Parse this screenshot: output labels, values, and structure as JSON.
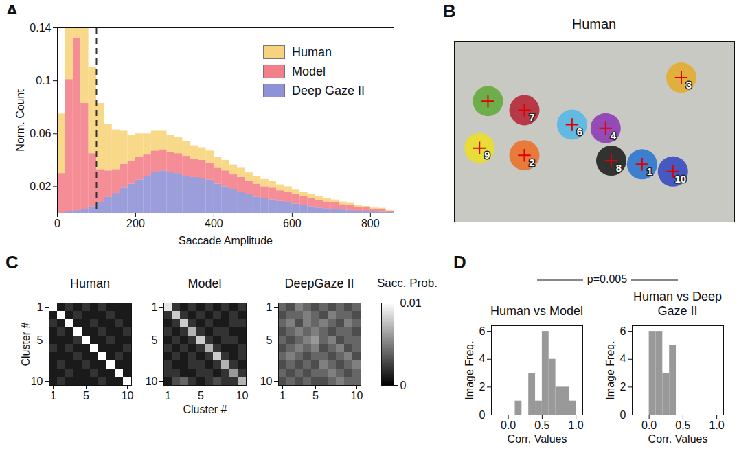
{
  "chart_data": [
    {
      "panel_label": "A",
      "type": "histogram",
      "x_label": "Saccade Amplitude",
      "y_label": "Norm. Count",
      "bins": [
        0,
        20,
        40,
        60,
        80,
        100,
        120,
        140,
        160,
        180,
        200,
        220,
        240,
        260,
        280,
        300,
        320,
        340,
        360,
        380,
        400,
        420,
        440,
        460,
        480,
        500,
        520,
        540,
        560,
        580,
        600,
        620,
        640,
        660,
        680,
        700,
        720,
        740,
        760,
        780,
        800,
        820,
        840,
        860
      ],
      "series": [
        {
          "name": "Human",
          "color": "#f5c95c",
          "values": [
            0.045,
            0.09,
            0.11,
            0.09,
            0.065,
            0.05,
            0.035,
            0.03,
            0.025,
            0.02,
            0.018,
            0.016,
            0.015,
            0.014,
            0.013,
            0.012,
            0.011,
            0.01,
            0.0095,
            0.009,
            0.0085,
            0.008,
            0.0075,
            0.007,
            0.0065,
            0.006,
            0.0055,
            0.005,
            0.0045,
            0.004,
            0.0035,
            0.003,
            0.003,
            0.0025,
            0.0025,
            0.002,
            0.002,
            0.0015,
            0.0015,
            0.001,
            0.001,
            0.001,
            0.0005
          ]
        },
        {
          "name": "Model",
          "color": "#f0616e",
          "values": [
            0.03,
            0.1,
            0.13,
            0.08,
            0.04,
            0.025,
            0.02,
            0.018,
            0.018,
            0.017,
            0.017,
            0.016,
            0.016,
            0.016,
            0.015,
            0.015,
            0.015,
            0.014,
            0.014,
            0.013,
            0.012,
            0.012,
            0.011,
            0.011,
            0.01,
            0.01,
            0.009,
            0.009,
            0.008,
            0.008,
            0.007,
            0.007,
            0.006,
            0.006,
            0.005,
            0.005,
            0.004,
            0.004,
            0.003,
            0.003,
            0.002,
            0.002,
            0.001
          ]
        },
        {
          "name": "Deep Gaze II",
          "color": "#7478cc",
          "values": [
            0,
            0.001,
            0.002,
            0.003,
            0.005,
            0.008,
            0.012,
            0.015,
            0.019,
            0.022,
            0.025,
            0.028,
            0.031,
            0.032,
            0.031,
            0.03,
            0.028,
            0.027,
            0.026,
            0.025,
            0.022,
            0.02,
            0.018,
            0.016,
            0.014,
            0.012,
            0.011,
            0.01,
            0.009,
            0.008,
            0.007,
            0.006,
            0.005,
            0.004,
            0.0035,
            0.003,
            0.0025,
            0.002,
            0.0015,
            0.0012,
            0.001,
            0.0008,
            0.0005
          ]
        }
      ],
      "xlim": [
        0,
        860
      ],
      "xticks": [
        0,
        200,
        400,
        600,
        800
      ],
      "ylim": [
        0,
        0.14
      ],
      "yticks": [
        0.02,
        0.06,
        0.1,
        0.14
      ],
      "legend": "top-right",
      "reference_line": {
        "x": 100,
        "line_style": "dashed"
      }
    },
    {
      "panel_label": "B",
      "type": "scatter",
      "title": "Human",
      "tick_labels": false,
      "xlim": [
        0,
        100
      ],
      "ylim": [
        100,
        0
      ],
      "points": [
        {
          "label": "1",
          "color": "#1f6fd1",
          "x": 67,
          "y": 68
        },
        {
          "label": "2",
          "color": "#ef6a1f",
          "x": 25,
          "y": 63
        },
        {
          "label": "3",
          "color": "#e6a91e",
          "x": 81,
          "y": 20
        },
        {
          "label": "4",
          "color": "#8a2fb3",
          "x": 54,
          "y": 48
        },
        {
          "label": null,
          "color": "#5aa830",
          "x": 12,
          "y": 33
        },
        {
          "label": "6",
          "color": "#4cb6e8",
          "x": 42,
          "y": 46
        },
        {
          "label": "7",
          "color": "#b3182c",
          "x": 25,
          "y": 38
        },
        {
          "label": "8",
          "color": "#111111",
          "x": 56,
          "y": 66
        },
        {
          "label": "9",
          "color": "#efe01a",
          "x": 9,
          "y": 59
        },
        {
          "label": "10",
          "color": "#2b3fc0",
          "x": 78,
          "y": 72
        }
      ]
    },
    {
      "panel_label": "C",
      "type": "heatmap",
      "categories": [
        1,
        2,
        3,
        4,
        5,
        6,
        7,
        8,
        9,
        10
      ],
      "xticks": [
        1,
        5,
        10
      ],
      "yticks": [
        1,
        5,
        10
      ],
      "colorbar": {
        "title": "Sacc. Prob.",
        "range": [
          0,
          0.01
        ],
        "ticks": [
          0,
          0.01
        ]
      },
      "panels": [
        {
          "title": "Human",
          "y_label": "Cluster #",
          "cells": [
            [
              0.01,
              0.001,
              0.002,
              0.001,
              0.002,
              0.001,
              0.002,
              0.001,
              0.001,
              0.001
            ],
            [
              0.001,
              0.01,
              0.001,
              0.002,
              0.001,
              0.001,
              0.001,
              0.002,
              0.001,
              0.001
            ],
            [
              0.002,
              0.001,
              0.01,
              0.001,
              0.001,
              0.002,
              0.001,
              0.001,
              0.002,
              0.001
            ],
            [
              0.001,
              0.002,
              0.001,
              0.01,
              0.001,
              0.001,
              0.002,
              0.001,
              0.001,
              0.002
            ],
            [
              0.001,
              0.001,
              0.001,
              0.002,
              0.01,
              0.001,
              0.001,
              0.002,
              0.001,
              0.001
            ],
            [
              0.002,
              0.001,
              0.002,
              0.001,
              0.001,
              0.01,
              0.001,
              0.001,
              0.001,
              0.002
            ],
            [
              0.001,
              0.001,
              0.001,
              0.002,
              0.001,
              0.001,
              0.01,
              0.001,
              0.002,
              0.001
            ],
            [
              0.001,
              0.002,
              0.001,
              0.001,
              0.002,
              0.001,
              0.001,
              0.01,
              0.001,
              0.001
            ],
            [
              0.001,
              0.001,
              0.002,
              0.001,
              0.001,
              0.002,
              0.001,
              0.001,
              0.01,
              0.001
            ],
            [
              0.001,
              0.002,
              0.001,
              0.001,
              0.001,
              0.001,
              0.002,
              0.001,
              0.001,
              0.01
            ]
          ]
        },
        {
          "title": "Model",
          "x_label": "Cluster #",
          "cells": [
            [
              0.009,
              0.002,
              0.001,
              0.002,
              0.001,
              0.002,
              0.001,
              0.002,
              0.001,
              0.002
            ],
            [
              0.002,
              0.008,
              0.002,
              0.001,
              0.002,
              0.001,
              0.002,
              0.001,
              0.002,
              0.001
            ],
            [
              0.001,
              0.002,
              0.008,
              0.002,
              0.001,
              0.002,
              0.001,
              0.001,
              0.002,
              0.002
            ],
            [
              0.002,
              0.001,
              0.002,
              0.007,
              0.002,
              0.001,
              0.002,
              0.002,
              0.001,
              0.001
            ],
            [
              0.001,
              0.002,
              0.001,
              0.002,
              0.008,
              0.002,
              0.001,
              0.002,
              0.002,
              0.001
            ],
            [
              0.002,
              0.001,
              0.002,
              0.001,
              0.002,
              0.007,
              0.002,
              0.001,
              0.001,
              0.002
            ],
            [
              0.001,
              0.002,
              0.001,
              0.002,
              0.001,
              0.002,
              0.008,
              0.002,
              0.001,
              0.002
            ],
            [
              0.002,
              0.001,
              0.001,
              0.002,
              0.002,
              0.001,
              0.002,
              0.007,
              0.002,
              0.001
            ],
            [
              0.002,
              0.002,
              0.001,
              0.001,
              0.002,
              0.002,
              0.001,
              0.002,
              0.006,
              0.002
            ],
            [
              0.001,
              0.003,
              0.004,
              0.002,
              0.001,
              0.002,
              0.003,
              0.002,
              0.002,
              0.007
            ]
          ]
        },
        {
          "title": "DeepGaze II",
          "cells": [
            [
              0.004,
              0.003,
              0.005,
              0.004,
              0.003,
              0.004,
              0.003,
              0.004,
              0.003,
              0.004
            ],
            [
              0.003,
              0.004,
              0.004,
              0.005,
              0.004,
              0.003,
              0.005,
              0.004,
              0.004,
              0.003
            ],
            [
              0.004,
              0.005,
              0.003,
              0.005,
              0.004,
              0.005,
              0.004,
              0.003,
              0.005,
              0.004
            ],
            [
              0.003,
              0.004,
              0.005,
              0.004,
              0.005,
              0.004,
              0.003,
              0.004,
              0.004,
              0.003
            ],
            [
              0.004,
              0.003,
              0.004,
              0.005,
              0.006,
              0.004,
              0.005,
              0.003,
              0.004,
              0.004
            ],
            [
              0.003,
              0.004,
              0.005,
              0.004,
              0.005,
              0.003,
              0.004,
              0.005,
              0.003,
              0.004
            ],
            [
              0.004,
              0.005,
              0.004,
              0.003,
              0.004,
              0.004,
              0.003,
              0.004,
              0.005,
              0.003
            ],
            [
              0.003,
              0.004,
              0.003,
              0.004,
              0.003,
              0.005,
              0.004,
              0.003,
              0.004,
              0.005
            ],
            [
              0.004,
              0.003,
              0.004,
              0.003,
              0.004,
              0.004,
              0.005,
              0.004,
              0.003,
              0.004
            ],
            [
              0.003,
              0.004,
              0.003,
              0.004,
              0.003,
              0.003,
              0.004,
              0.005,
              0.004,
              0.004
            ]
          ]
        }
      ]
    },
    {
      "panel_label": "D",
      "type": "histogram",
      "annotation": "p=0.005",
      "xlim": [
        -0.25,
        1.1
      ],
      "xticks": [
        {
          "value": 0,
          "label": "0.0"
        },
        0.5,
        {
          "value": 1,
          "label": "1.0"
        }
      ],
      "ylim": [
        0,
        6.4
      ],
      "yticks": [
        0,
        2,
        4,
        6
      ],
      "panels": [
        {
          "title": "Human vs Model",
          "x_label": "Corr. Values",
          "y_label": "Image Freq.",
          "color": "#999999",
          "bins": [
            0,
            0.1,
            0.2,
            0.3,
            0.4,
            0.5,
            0.6,
            0.7,
            0.8,
            0.9,
            1.0
          ],
          "values": [
            0,
            1,
            0,
            3,
            1,
            6,
            4,
            2,
            2,
            1
          ]
        },
        {
          "title": "Human vs Deep Gaze II",
          "x_label": "Corr. Values",
          "y_label": "Image Freq.",
          "color": "#999999",
          "bins": [
            0,
            0.1,
            0.2,
            0.3,
            0.4
          ],
          "values": [
            6,
            6,
            3,
            5
          ]
        }
      ]
    }
  ]
}
